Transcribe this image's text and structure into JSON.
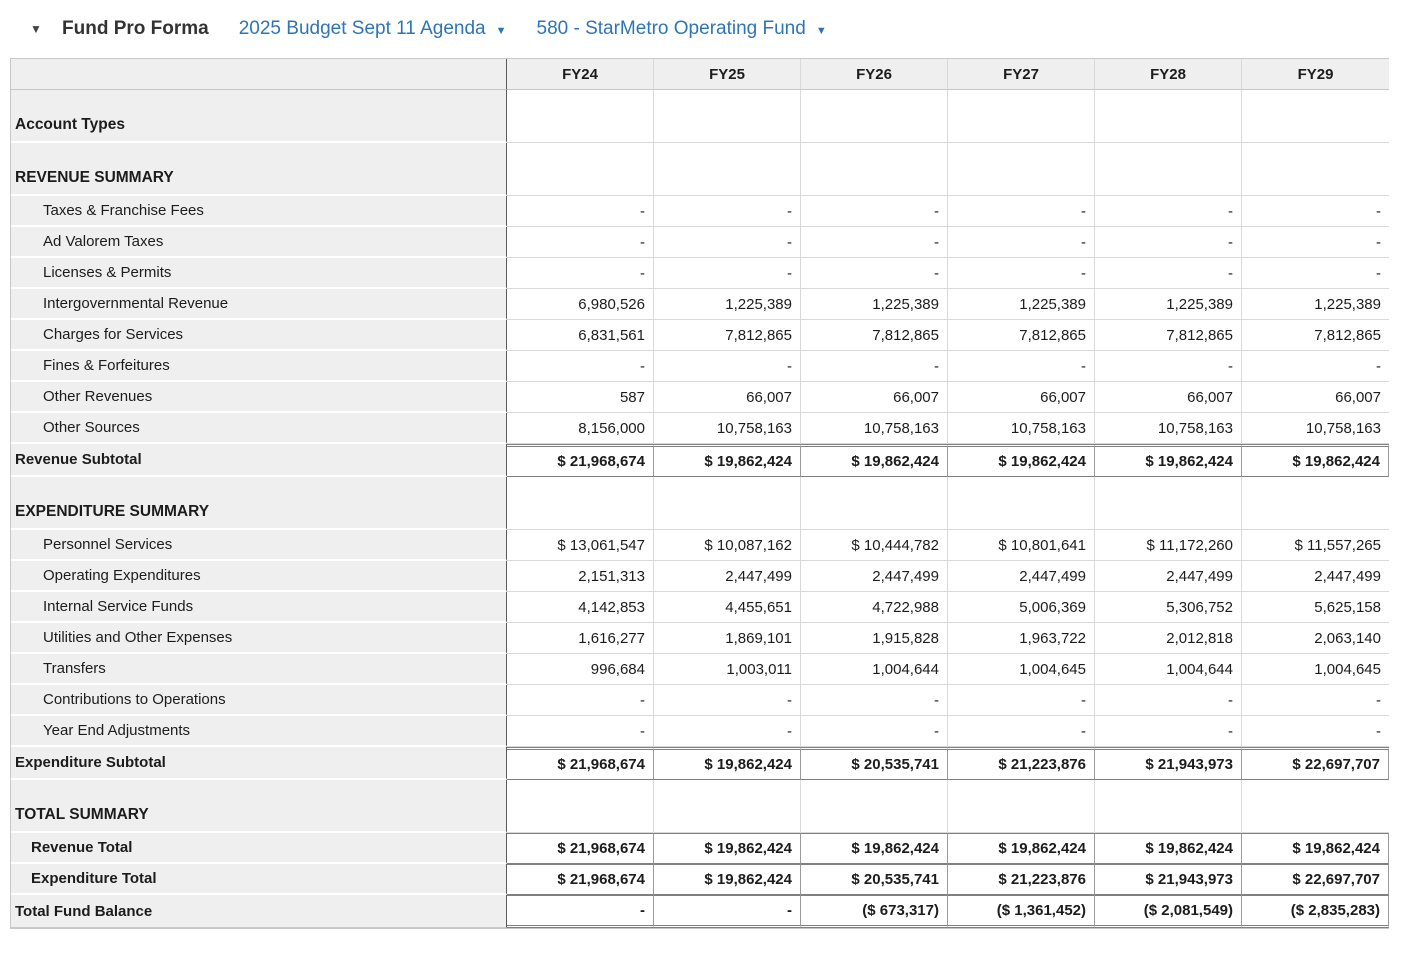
{
  "toolbar": {
    "collapse_icon": "▼",
    "title": "Fund Pro Forma",
    "budget_selector": {
      "label": "2025 Budget Sept 11 Agenda",
      "dropdown_icon": "▼"
    },
    "fund_selector": {
      "label": "580 - StarMetro Operating Fund",
      "dropdown_icon": "▼"
    }
  },
  "colors": {
    "accent_blue": "#2E75B6",
    "header_bg": "#EFEFEF",
    "label_column_bg": "#EFEFEF",
    "dark_border": "#808080",
    "light_border": "#D9D9D9"
  },
  "table": {
    "label_column_header": "",
    "columns": [
      "FY24",
      "FY25",
      "FY26",
      "FY27",
      "FY28",
      "FY29"
    ],
    "rows": [
      {
        "type": "section",
        "label": "Account Types",
        "values": [
          "",
          "",
          "",
          "",
          "",
          ""
        ]
      },
      {
        "type": "section",
        "label": "REVENUE SUMMARY",
        "values": [
          "",
          "",
          "",
          "",
          "",
          ""
        ]
      },
      {
        "type": "detail",
        "label": "Taxes & Franchise Fees",
        "values": [
          "-",
          "-",
          "-",
          "-",
          "-",
          "-"
        ]
      },
      {
        "type": "detail",
        "label": "Ad Valorem Taxes",
        "values": [
          "-",
          "-",
          "-",
          "-",
          "-",
          "-"
        ]
      },
      {
        "type": "detail",
        "label": "Licenses & Permits",
        "values": [
          "-",
          "-",
          "-",
          "-",
          "-",
          "-"
        ]
      },
      {
        "type": "detail",
        "label": "Intergovernmental Revenue",
        "values": [
          "6,980,526",
          "1,225,389",
          "1,225,389",
          "1,225,389",
          "1,225,389",
          "1,225,389"
        ]
      },
      {
        "type": "detail",
        "label": "Charges for Services",
        "values": [
          "6,831,561",
          "7,812,865",
          "7,812,865",
          "7,812,865",
          "7,812,865",
          "7,812,865"
        ]
      },
      {
        "type": "detail",
        "label": "Fines & Forfeitures",
        "values": [
          "-",
          "-",
          "-",
          "-",
          "-",
          "-"
        ]
      },
      {
        "type": "detail",
        "label": "Other Revenues",
        "values": [
          "587",
          "66,007",
          "66,007",
          "66,007",
          "66,007",
          "66,007"
        ]
      },
      {
        "type": "detail",
        "label": "Other Sources",
        "values": [
          "8,156,000",
          "10,758,163",
          "10,758,163",
          "10,758,163",
          "10,758,163",
          "10,758,163"
        ]
      },
      {
        "type": "subtotal",
        "label": "Revenue Subtotal",
        "values": [
          "$ 21,968,674",
          "$ 19,862,424",
          "$ 19,862,424",
          "$ 19,862,424",
          "$ 19,862,424",
          "$ 19,862,424"
        ]
      },
      {
        "type": "section",
        "label": "EXPENDITURE SUMMARY",
        "values": [
          "",
          "",
          "",
          "",
          "",
          ""
        ]
      },
      {
        "type": "detail",
        "label": "Personnel Services",
        "values": [
          "$ 13,061,547",
          "$ 10,087,162",
          "$ 10,444,782",
          "$ 10,801,641",
          "$ 11,172,260",
          "$ 11,557,265"
        ]
      },
      {
        "type": "detail",
        "label": "Operating Expenditures",
        "values": [
          "2,151,313",
          "2,447,499",
          "2,447,499",
          "2,447,499",
          "2,447,499",
          "2,447,499"
        ]
      },
      {
        "type": "detail",
        "label": "Internal Service Funds",
        "values": [
          "4,142,853",
          "4,455,651",
          "4,722,988",
          "5,006,369",
          "5,306,752",
          "5,625,158"
        ]
      },
      {
        "type": "detail",
        "label": "Utilities and Other Expenses",
        "values": [
          "1,616,277",
          "1,869,101",
          "1,915,828",
          "1,963,722",
          "2,012,818",
          "2,063,140"
        ]
      },
      {
        "type": "detail",
        "label": "Transfers",
        "values": [
          "996,684",
          "1,003,011",
          "1,004,644",
          "1,004,645",
          "1,004,644",
          "1,004,645"
        ]
      },
      {
        "type": "detail",
        "label": "Contributions to Operations",
        "values": [
          "-",
          "-",
          "-",
          "-",
          "-",
          "-"
        ]
      },
      {
        "type": "detail",
        "label": "Year End Adjustments",
        "values": [
          "-",
          "-",
          "-",
          "-",
          "-",
          "-"
        ]
      },
      {
        "type": "subtotal",
        "label": "Expenditure Subtotal",
        "values": [
          "$ 21,968,674",
          "$ 19,862,424",
          "$ 20,535,741",
          "$ 21,223,876",
          "$ 21,943,973",
          "$ 22,697,707"
        ]
      },
      {
        "type": "section",
        "label": "TOTAL SUMMARY",
        "values": [
          "",
          "",
          "",
          "",
          "",
          ""
        ]
      },
      {
        "type": "total",
        "label": "Revenue Total",
        "values": [
          "$ 21,968,674",
          "$ 19,862,424",
          "$ 19,862,424",
          "$ 19,862,424",
          "$ 19,862,424",
          "$ 19,862,424"
        ]
      },
      {
        "type": "total",
        "label": "Expenditure Total",
        "values": [
          "$ 21,968,674",
          "$ 19,862,424",
          "$ 20,535,741",
          "$ 21,223,876",
          "$ 21,943,973",
          "$ 22,697,707"
        ]
      },
      {
        "type": "balance",
        "label": "Total Fund Balance",
        "values": [
          "-",
          "-",
          "($ 673,317)",
          "($ 1,361,452)",
          "($ 2,081,549)",
          "($ 2,835,283)"
        ]
      }
    ]
  }
}
